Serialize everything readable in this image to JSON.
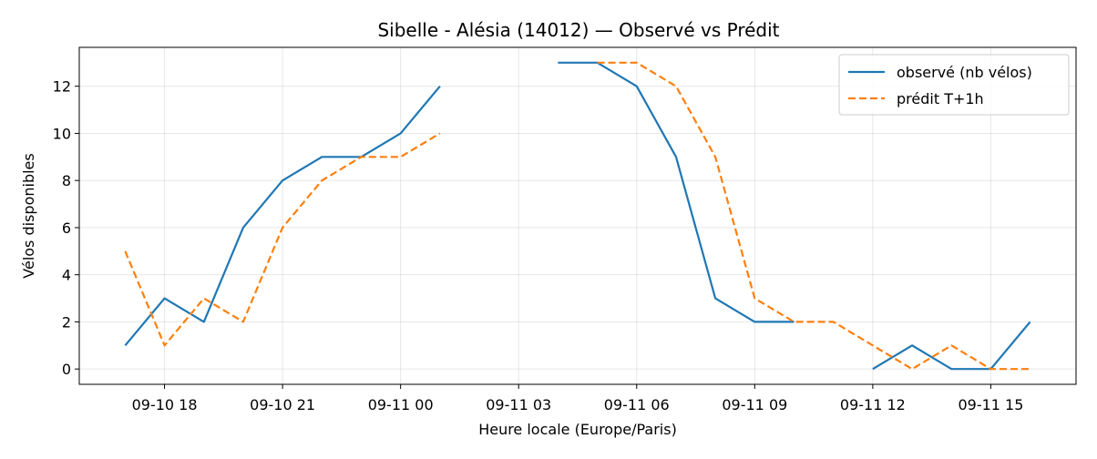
{
  "chart_data": {
    "type": "line",
    "title": "Sibelle - Alésia (14012) — Observé vs Prédit",
    "xlabel": "Heure locale (Europe/Paris)",
    "ylabel": "Vélos disponibles",
    "x": [
      "09-10 17:00",
      "09-10 18:00",
      "09-10 19:00",
      "09-10 20:00",
      "09-10 21:00",
      "09-10 22:00",
      "09-10 23:00",
      "09-11 00:00",
      "09-11 01:00",
      "09-11 02:00",
      "09-11 03:00",
      "09-11 04:00",
      "09-11 05:00",
      "09-11 06:00",
      "09-11 07:00",
      "09-11 08:00",
      "09-11 09:00",
      "09-11 10:00",
      "09-11 11:00",
      "09-11 12:00",
      "09-11 13:00",
      "09-11 14:00",
      "09-11 15:00",
      "09-11 16:00"
    ],
    "xticks": [
      "09-10 18",
      "09-10 21",
      "09-11 00",
      "09-11 03",
      "09-11 06",
      "09-11 09",
      "09-11 12",
      "09-11 15"
    ],
    "xtick_indices": [
      1,
      4,
      7,
      10,
      13,
      16,
      19,
      22
    ],
    "xlim": [
      "09-10 15:50",
      "09-11 17:10"
    ],
    "ylim": [
      -0.65,
      13.65
    ],
    "yticks": [
      0,
      2,
      4,
      6,
      8,
      10,
      12
    ],
    "grid": true,
    "legend_position": "top-right",
    "series": [
      {
        "name": "observé (nb vélos)",
        "color": "#1f77b4",
        "style": "solid",
        "values": [
          1,
          3,
          2,
          6,
          8,
          9,
          9,
          10,
          12,
          null,
          null,
          13,
          13,
          12,
          9,
          3,
          2,
          2,
          null,
          0,
          1,
          0,
          0,
          2
        ]
      },
      {
        "name": "prédit T+1h",
        "color": "#ff7f0e",
        "style": "dashed",
        "values": [
          5,
          1,
          3,
          2,
          6,
          8,
          9,
          9,
          10,
          null,
          null,
          null,
          13,
          13,
          12,
          9,
          3,
          2,
          2,
          1,
          0,
          1,
          0,
          0
        ]
      }
    ]
  }
}
